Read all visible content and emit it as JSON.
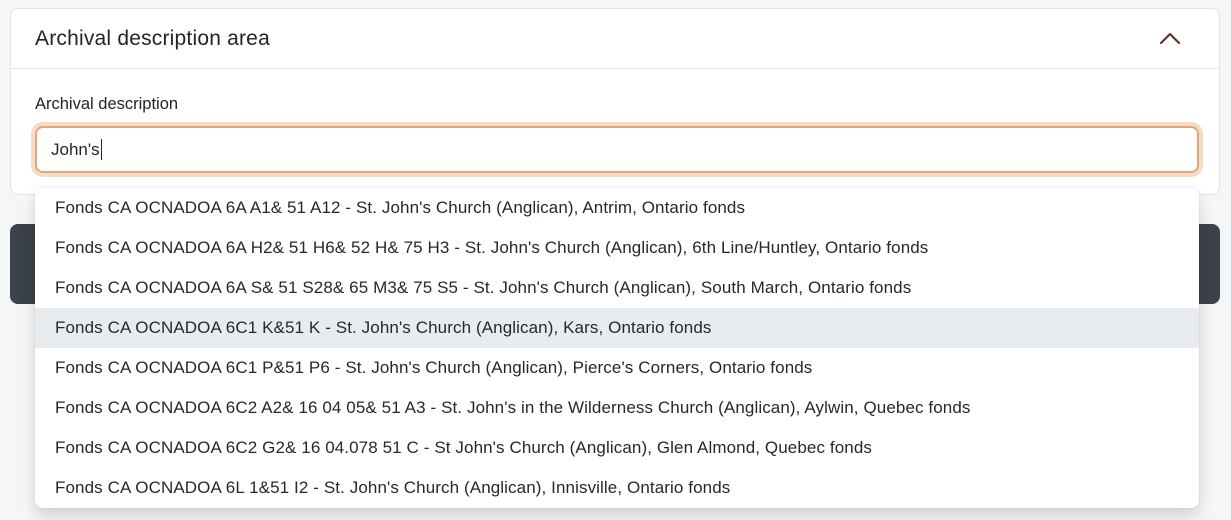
{
  "panel": {
    "title": "Archival description area"
  },
  "form": {
    "label": "Archival description",
    "input_value": "John's"
  },
  "dropdown": {
    "items": [
      {
        "label": "Fonds CA OCNADOA 6A A1& 51 A12 - St. John's Church (Anglican), Antrim, Ontario fonds",
        "highlighted": false
      },
      {
        "label": "Fonds CA OCNADOA 6A H2& 51 H6& 52 H& 75 H3 - St. John's Church (Anglican), 6th Line/Huntley, Ontario fonds",
        "highlighted": false
      },
      {
        "label": "Fonds CA OCNADOA 6A S& 51 S28& 65 M3& 75 S5 - St. John's Church (Anglican), South March, Ontario fonds",
        "highlighted": false
      },
      {
        "label": "Fonds CA OCNADOA 6C1 K&51 K - St. John's Church (Anglican), Kars, Ontario fonds",
        "highlighted": true
      },
      {
        "label": "Fonds CA OCNADOA 6C1 P&51 P6 - St. John's Church (Anglican), Pierce's Corners, Ontario fonds",
        "highlighted": false
      },
      {
        "label": "Fonds CA OCNADOA 6C2 A2& 16 04 05& 51 A3 - St. John's in the Wilderness Church (Anglican), Aylwin, Quebec fonds",
        "highlighted": false
      },
      {
        "label": "Fonds CA OCNADOA 6C2 G2& 16 04.078 51 C - St John's Church (Anglican), Glen Almond, Quebec fonds",
        "highlighted": false
      },
      {
        "label": "Fonds CA OCNADOA 6L 1&51 I2 - St. John's Church (Anglican), Innisville, Ontario fonds",
        "highlighted": false
      }
    ]
  },
  "colors": {
    "input_focus_border": "#e2a87c",
    "input_focus_ring": "#f5dcc4",
    "highlight_row_bg": "#e9ecef",
    "dark_action_bar": "#3b424a",
    "chevron_icon": "#5c3727",
    "text": "#212529"
  }
}
